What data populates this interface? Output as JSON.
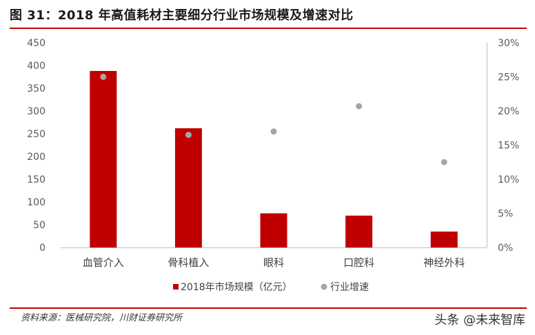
{
  "header": {
    "title": "图 31：2018 年高值耗材主要细分行业市场规模及增速对比"
  },
  "footer": {
    "source": "资料来源：医械研究院，川财证券研究所",
    "watermark": "头条 @未来智库"
  },
  "chart_data": {
    "type": "bar",
    "categories": [
      "血管介入",
      "骨科植入",
      "眼科",
      "口腔科",
      "神经外科"
    ],
    "series": [
      {
        "name": "2018年市场规模（亿元）",
        "type": "bar",
        "axis": "left",
        "values": [
          388,
          262,
          75,
          70,
          35
        ],
        "color": "#c00000"
      },
      {
        "name": "行业增速",
        "type": "scatter",
        "axis": "right",
        "values": [
          0.25,
          0.165,
          0.17,
          0.207,
          0.125
        ],
        "color": "#a6a6a6"
      }
    ],
    "ylim": [
      0,
      450
    ],
    "yticks": [
      0,
      50,
      100,
      150,
      200,
      250,
      300,
      350,
      400,
      450
    ],
    "y2lim": [
      0,
      0.3
    ],
    "y2ticks": [
      "0%",
      "5%",
      "10%",
      "15%",
      "20%",
      "25%",
      "30%"
    ],
    "legend": "bottom",
    "grid": false
  }
}
